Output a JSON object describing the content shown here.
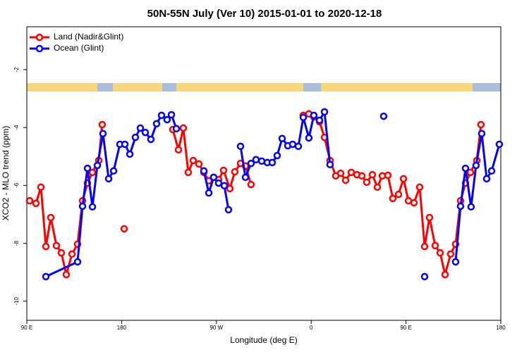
{
  "chart_data": {
    "type": "line",
    "title": "50N-55N July (Ver 10)   2015-01-01 to 2020-12-18",
    "xlabel": "Longitude (deg E)",
    "ylabel": "XCO2 - MLO trend (ppm)",
    "xlim": [
      90,
      540
    ],
    "xticks": [
      {
        "value": 90,
        "label": "90 E"
      },
      180,
      {
        "value": 270,
        "label": "90 W"
      },
      {
        "value": 360,
        "label": "0"
      },
      {
        "value": 450,
        "label": "90 E"
      },
      {
        "value": 540,
        "label": "180"
      }
    ],
    "ylim": [
      -10.66,
      -0.52
    ],
    "yticks": [
      -2,
      -4,
      -6,
      -8,
      -10
    ],
    "legend": "top-left",
    "series": [
      {
        "name": "Land (Nadir&Glint)",
        "color": "#ff0000",
        "x": [
          92.7,
          98.7,
          103.4,
          108.1,
          112.8,
          118.1,
          122.8,
          127.5,
          132.9,
          138.2,
          142.9,
          147.6,
          152.3,
          158.3,
          161.6,
          null,
          182.4,
          null,
          228.6,
          234.0,
          238.6,
          243.3,
          248.0,
          253.4,
          258.1,
          262.8,
          267.4,
          272.1,
          276.8,
          282.8,
          287.5,
          292.9,
          297.6,
          302.9,
          null,
          352.5,
          357.8,
          362.5,
          367.9,
          372.6,
          377.9,
          383.3,
          388.0,
          392.7,
          398.0,
          403.4,
          408.1,
          412.7,
          418.1,
          422.8,
          427.5,
          432.8,
          437.5,
          442.9,
          447.6,
          452.3,
          457.6,
          463.0,
          467.7,
          472.3,
          477.7,
          482.4,
          487.1,
          492.4,
          497.1,
          501.8,
          506.5,
          511.2,
          517.2,
          521.2
        ],
        "values": [
          -6.53,
          -6.62,
          -6.06,
          -8.11,
          -7.11,
          -8.08,
          -8.33,
          -9.08,
          -8.37,
          -8.03,
          -6.53,
          -5.92,
          -5.55,
          -5.14,
          -3.9,
          null,
          -7.5,
          null,
          -4.07,
          -4.77,
          -4.02,
          -5.55,
          -5.14,
          -5.26,
          -5.55,
          -5.84,
          -5.72,
          -5.8,
          -5.48,
          -6.11,
          -5.53,
          -5.24,
          -5.33,
          -5.97,
          null,
          -3.58,
          -3.53,
          -3.63,
          -3.8,
          -4.34,
          -5.14,
          -5.67,
          -5.58,
          -5.82,
          -5.55,
          -5.63,
          -5.67,
          -5.89,
          -5.63,
          -6.06,
          -5.67,
          -5.65,
          -6.45,
          -6.31,
          -5.77,
          -6.53,
          -6.6,
          -6.06,
          -8.11,
          -7.11,
          -8.08,
          -8.33,
          -9.08,
          -8.37,
          -8.03,
          -6.53,
          -5.92,
          -5.55,
          -5.14,
          -3.9
        ]
      },
      {
        "name": "Ocean (Glint)",
        "color": "#0000ff",
        "x": [
          108.1,
          138.2,
          142.9,
          147.6,
          152.3,
          157.0,
          162.3,
          167.7,
          172.4,
          178.4,
          183.1,
          187.8,
          193.1,
          197.8,
          202.5,
          207.8,
          213.2,
          217.9,
          223.2,
          227.3,
          232.0,
          null,
          258.1,
          262.8,
          267.4,
          272.1,
          277.5,
          281.5,
          null,
          292.9,
          297.6,
          302.9,
          307.6,
          313.0,
          318.3,
          323.0,
          327.7,
          332.4,
          337.8,
          342.4,
          347.8,
          352.5,
          357.8,
          362.5,
          367.9,
          372.6,
          377.9,
          null,
          428.8,
          null,
          467.7,
          null,
          497.1,
          501.8,
          506.5,
          511.8,
          516.5,
          521.9,
          526.6,
          531.3,
          538.6
        ],
        "values": [
          -9.15,
          -8.64,
          -6.72,
          -5.41,
          -6.74,
          -5.31,
          -4.21,
          -5.77,
          -5.5,
          -4.58,
          -4.58,
          -4.92,
          -4.34,
          -4.02,
          -4.17,
          -4.41,
          -3.87,
          -3.58,
          -3.73,
          -3.56,
          -4.04,
          null,
          -5.5,
          -6.26,
          -5.72,
          -5.92,
          -6.01,
          -6.84,
          null,
          -4.65,
          -5.72,
          -5.24,
          -5.11,
          -5.16,
          -5.21,
          -5.21,
          -4.97,
          -4.38,
          -4.63,
          -4.58,
          -4.65,
          -3.65,
          -4.36,
          -3.58,
          -3.75,
          -3.46,
          -5.28,
          null,
          -3.61,
          null,
          -9.15,
          null,
          -8.64,
          -6.72,
          -5.41,
          -6.74,
          -5.31,
          -4.21,
          -5.77,
          -5.5,
          -4.58
        ]
      }
    ]
  }
}
